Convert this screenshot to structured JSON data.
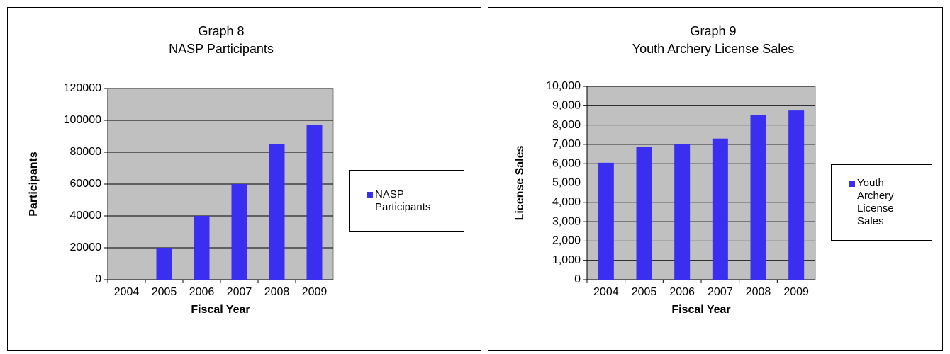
{
  "chart_data": [
    {
      "type": "bar",
      "title": "Graph 8",
      "subtitle": "NASP Participants",
      "x_label": "Fiscal Year",
      "y_label": "Participants",
      "categories": [
        "2004",
        "2005",
        "2006",
        "2007",
        "2008",
        "2009"
      ],
      "series": [
        {
          "name": "NASP Participants",
          "color": "#3a2ff0",
          "values": [
            0,
            20000,
            40000,
            60000,
            85000,
            97000
          ]
        }
      ],
      "ylim": [
        0,
        120000
      ],
      "yticks": [
        0,
        20000,
        40000,
        60000,
        80000,
        100000,
        120000
      ],
      "grid": true,
      "legend": "right"
    },
    {
      "type": "bar",
      "title": "Graph 9",
      "subtitle": "Youth Archery License Sales",
      "x_label": "Fiscal Year",
      "y_label": "License Sales",
      "categories": [
        "2004",
        "2005",
        "2006",
        "2007",
        "2008",
        "2009"
      ],
      "series": [
        {
          "name": "Youth Archery License Sales",
          "color": "#3a2ff0",
          "values": [
            6050,
            6850,
            7000,
            7300,
            8500,
            8750
          ]
        }
      ],
      "ylim": [
        0,
        10000
      ],
      "yticks": [
        0,
        {
          "value": 1000,
          "label": "1,000"
        },
        {
          "value": 2000,
          "label": "2,000"
        },
        {
          "value": 3000,
          "label": "3,000"
        },
        {
          "value": 4000,
          "label": "4,000"
        },
        {
          "value": 5000,
          "label": "5,000"
        },
        {
          "value": 6000,
          "label": "6,000"
        },
        {
          "value": 7000,
          "label": "7,000"
        },
        {
          "value": 8000,
          "label": "8,000"
        },
        {
          "value": 9000,
          "label": "9,000"
        },
        {
          "value": 10000,
          "label": "10,000"
        }
      ],
      "grid": true,
      "legend": "right"
    }
  ]
}
